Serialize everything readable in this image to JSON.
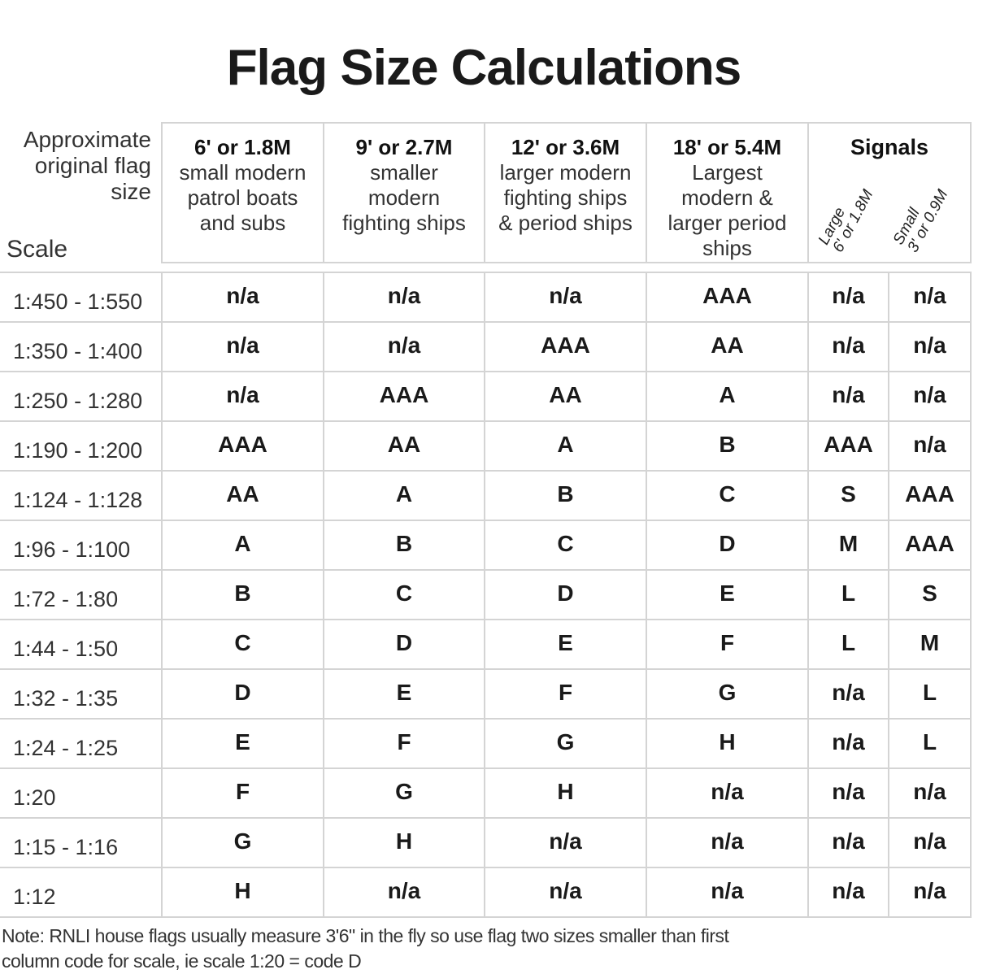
{
  "title": "Flag Size Calculations",
  "header": {
    "approx_label": [
      "Approximate",
      "original flag",
      "size"
    ],
    "scale_label": "Scale",
    "columns": [
      {
        "size": "6' or 1.8M",
        "desc": [
          "small modern",
          "patrol boats",
          "and subs"
        ]
      },
      {
        "size": "9' or 2.7M",
        "desc": [
          "smaller",
          "modern",
          "fighting ships"
        ]
      },
      {
        "size": "12' or 3.6M",
        "desc": [
          "larger modern",
          "fighting ships",
          "& period ships"
        ]
      },
      {
        "size": "18' or 5.4M",
        "desc": [
          "Largest",
          "modern &",
          "larger period",
          "ships"
        ]
      }
    ],
    "signals": {
      "title": "Signals",
      "large": [
        "Large",
        "6' or 1.8M"
      ],
      "small": [
        "Small",
        "3' or 0.9M"
      ]
    }
  },
  "rows": [
    {
      "scale": "1:450 - 1:550",
      "cells": [
        "n/a",
        "n/a",
        "n/a",
        "AAA",
        "n/a",
        "n/a"
      ]
    },
    {
      "scale": "1:350 - 1:400",
      "cells": [
        "n/a",
        "n/a",
        "AAA",
        "AA",
        "n/a",
        "n/a"
      ]
    },
    {
      "scale": "1:250 - 1:280",
      "cells": [
        "n/a",
        "AAA",
        "AA",
        "A",
        "n/a",
        "n/a"
      ]
    },
    {
      "scale": "1:190 - 1:200",
      "cells": [
        "AAA",
        "AA",
        "A",
        "B",
        "AAA",
        "n/a"
      ]
    },
    {
      "scale": "1:124 - 1:128",
      "cells": [
        "AA",
        "A",
        "B",
        "C",
        "S",
        "AAA"
      ]
    },
    {
      "scale": "1:96 - 1:100",
      "cells": [
        "A",
        "B",
        "C",
        "D",
        "M",
        "AAA"
      ]
    },
    {
      "scale": "1:72 - 1:80",
      "cells": [
        "B",
        "C",
        "D",
        "E",
        "L",
        "S"
      ]
    },
    {
      "scale": "1:44 - 1:50",
      "cells": [
        "C",
        "D",
        "E",
        "F",
        "L",
        "M"
      ]
    },
    {
      "scale": "1:32 - 1:35",
      "cells": [
        "D",
        "E",
        "F",
        "G",
        "n/a",
        "L"
      ]
    },
    {
      "scale": "1:24 - 1:25",
      "cells": [
        "E",
        "F",
        "G",
        "H",
        "n/a",
        "L"
      ]
    },
    {
      "scale": "1:20",
      "cells": [
        "F",
        "G",
        "H",
        "n/a",
        "n/a",
        "n/a"
      ]
    },
    {
      "scale": "1:15 - 1:16",
      "cells": [
        "G",
        "H",
        "n/a",
        "n/a",
        "n/a",
        "n/a"
      ]
    },
    {
      "scale": "1:12",
      "cells": [
        "H",
        "n/a",
        "n/a",
        "n/a",
        "n/a",
        "n/a"
      ]
    }
  ],
  "note": [
    "Note: RNLI house flags usually measure 3'6\" in the fly so use flag two sizes smaller than first",
    "column code for scale,  ie scale 1:20 = code D"
  ]
}
